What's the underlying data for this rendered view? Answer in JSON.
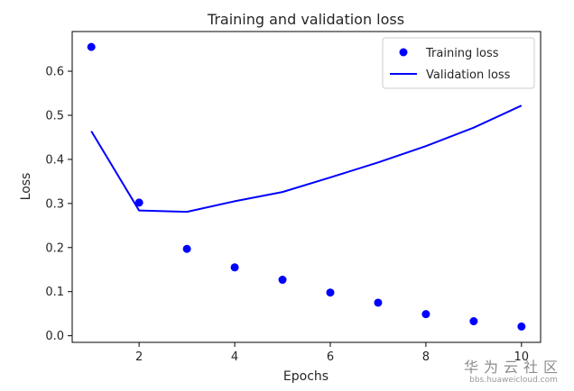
{
  "chart_data": {
    "type": "scatter+line",
    "title": "Training and validation loss",
    "xlabel": "Epochs",
    "ylabel": "Loss",
    "xlim": [
      0.6,
      10.4
    ],
    "ylim": [
      -0.015,
      0.69
    ],
    "xticks": [
      2,
      4,
      6,
      8,
      10
    ],
    "yticks": [
      0.0,
      0.1,
      0.2,
      0.3,
      0.4,
      0.5,
      0.6
    ],
    "xtick_labels": [
      "2",
      "4",
      "6",
      "8",
      "10"
    ],
    "ytick_labels": [
      "0.0",
      "0.1",
      "0.2",
      "0.3",
      "0.4",
      "0.5",
      "0.6"
    ],
    "grid": false,
    "legend_position": "top-right",
    "series": [
      {
        "name": "Training loss",
        "type": "scatter",
        "color": "#0000ff",
        "x": [
          1,
          2,
          3,
          4,
          5,
          6,
          7,
          8,
          9,
          10
        ],
        "y": [
          0.655,
          0.302,
          0.197,
          0.155,
          0.127,
          0.098,
          0.075,
          0.049,
          0.033,
          0.021
        ]
      },
      {
        "name": "Validation loss",
        "type": "line",
        "color": "#0000ff",
        "x": [
          1,
          2,
          3,
          4,
          5,
          6,
          7,
          8,
          9,
          10
        ],
        "y": [
          0.464,
          0.284,
          0.281,
          0.305,
          0.326,
          0.359,
          0.393,
          0.43,
          0.472,
          0.522
        ]
      }
    ]
  },
  "watermark": {
    "cn_text": "华为云社区",
    "url_text": "bbs.huaweicloud.com"
  }
}
